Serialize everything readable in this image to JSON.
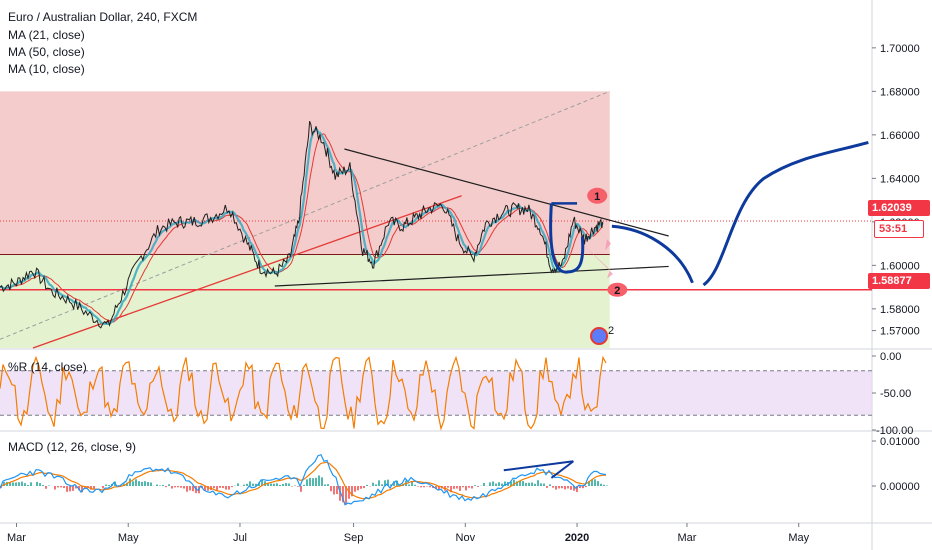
{
  "legend": {
    "title": "Euro / Australian Dollar, 240, FXCM",
    "ma21": "MA (21, close)",
    "ma50": "MA (50, close)",
    "ma10": "MA (10, close)"
  },
  "pane_labels": {
    "williams": "%R (14, close)",
    "macd": "MACD (12, 26, close, 9)"
  },
  "price_tags": {
    "last_price": "1.62039",
    "countdown": "53:51",
    "level_price": "1.58877"
  },
  "annotations": {
    "marker_1": "1",
    "marker_2": "2",
    "event_badge": "2"
  },
  "colors": {
    "upper_zone": "#f4cccc",
    "lower_zone": "#e4f2d0",
    "price_line": "#1f1f1f",
    "ma_cyan": "#35a8c2",
    "ma_red": "#e53935",
    "projection": "#0d3a9c",
    "williams_line": "#f57c00",
    "williams_band": "#e9d7f5",
    "macd_line": "#2196f3",
    "signal_line": "#f57c00",
    "last_price_tag": "#f23645",
    "level_tag": "#f23645",
    "countdown_tag": "#f23645"
  },
  "chart_data": [
    {
      "type": "line",
      "pane": "price",
      "title": "Euro / Australian Dollar, 240, FXCM",
      "x_ticks": [
        "Mar",
        "May",
        "Jul",
        "Sep",
        "Nov",
        "2020",
        "Mar",
        "May"
      ],
      "y_ticks": [
        "1.70000",
        "1.68000",
        "1.66000",
        "1.64000",
        "1.62000",
        "1.60000",
        "1.58000",
        "1.57000"
      ],
      "ylim": [
        1.562,
        1.722
      ],
      "series": [
        {
          "name": "",
          "x": [
            "2019-02-20",
            "2019-03-01",
            "2019-03-10",
            "2019-03-20",
            "2019-03-30",
            "2019-04-10",
            "2019-04-20",
            "2019-04-28",
            "2019-05-08",
            "2019-05-18",
            "2019-05-28",
            "2019-06-05",
            "2019-06-15",
            "2019-06-25",
            "2019-07-05",
            "2019-07-12",
            "2019-07-20",
            "2019-07-28",
            "2019-08-02",
            "2019-08-08",
            "2019-08-15",
            "2019-08-22",
            "2019-08-30",
            "2019-09-06",
            "2019-09-12",
            "2019-09-20",
            "2019-09-28",
            "2019-10-05",
            "2019-10-12",
            "2019-10-20",
            "2019-10-28",
            "2019-11-05",
            "2019-11-12",
            "2019-11-20",
            "2019-11-28",
            "2019-12-05",
            "2019-12-12",
            "2019-12-18",
            "2019-12-24",
            "2019-12-30",
            "2020-01-05",
            "2020-01-10",
            "2020-01-15"
          ],
          "values": [
            1.59,
            1.592,
            1.598,
            1.588,
            1.584,
            1.577,
            1.572,
            1.587,
            1.604,
            1.617,
            1.62,
            1.62,
            1.622,
            1.627,
            1.61,
            1.599,
            1.596,
            1.603,
            1.62,
            1.664,
            1.658,
            1.641,
            1.645,
            1.607,
            1.601,
            1.62,
            1.618,
            1.622,
            1.626,
            1.628,
            1.612,
            1.603,
            1.619,
            1.624,
            1.626,
            1.626,
            1.617,
            1.599,
            1.6,
            1.621,
            1.612,
            1.617,
            1.62
          ]
        }
      ],
      "horizontal_levels": [
        1.62039,
        1.58877,
        1.605
      ],
      "zones": [
        {
          "from": 1.605,
          "to": 1.68,
          "color": "upper_zone"
        },
        {
          "from": 1.562,
          "to": 1.605,
          "color": "lower_zone"
        }
      ]
    },
    {
      "type": "line",
      "pane": "williams",
      "title": "%R (14, close)",
      "y_ticks": [
        "0.00",
        "-50.00",
        "-100.00"
      ],
      "ylim": [
        -100,
        0
      ],
      "band": [
        -20,
        -80
      ]
    },
    {
      "type": "line",
      "pane": "macd",
      "title": "MACD (12, 26, close, 9)",
      "y_ticks": [
        "0.01000",
        "0.00000"
      ],
      "ylim": [
        -0.008,
        0.012
      ]
    }
  ]
}
